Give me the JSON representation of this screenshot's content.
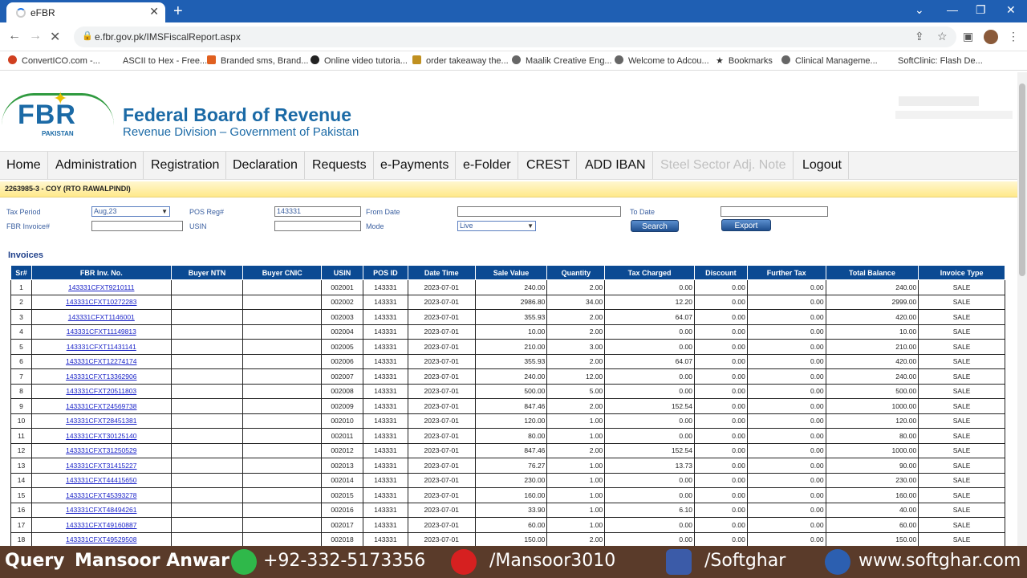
{
  "browser": {
    "tab_title": "eFBR",
    "tab_close": "✕",
    "new_tab": "+",
    "url": "e.fbr.gov.pk/IMSFiscalReport.aspx",
    "bookmarks": [
      {
        "label": "ConvertICO.com -...",
        "color": "#d04020"
      },
      {
        "label": "ASCII to Hex - Free...",
        "color": "#ffffff"
      },
      {
        "label": "Branded sms, Brand...",
        "color": "#e06020"
      },
      {
        "label": "Online video tutoria...",
        "color": "#222222"
      },
      {
        "label": "order takeaway the...",
        "color": "#c09020"
      },
      {
        "label": "Maalik Creative Eng...",
        "color": "#666666"
      },
      {
        "label": "Welcome to Adcou...",
        "color": "#666666"
      },
      {
        "label": "Bookmarks",
        "color": "#444444"
      },
      {
        "label": "Clinical Manageme...",
        "color": "#666666"
      },
      {
        "label": "SoftClinic: Flash De...",
        "color": "#ffffff"
      }
    ]
  },
  "header": {
    "logo_text": "FBR",
    "logo_sub": "PAKISTAN",
    "org_name": "Federal Board of Revenue",
    "org_sub": "Revenue Division – Government of Pakistan"
  },
  "menu": [
    "Home",
    "Administration",
    "Registration",
    "Declaration",
    "Requests",
    "e-Payments",
    "e-Folder",
    "CREST",
    "ADD IBAN",
    "Steel Sector Adj. Note",
    "Logout"
  ],
  "info": {
    "text": "2263985-3 - COY (RTO RAWALPINDI)"
  },
  "form": {
    "tax_period_label": "Tax Period",
    "tax_period_value": "Aug,23",
    "pos_reg_label": "POS Reg#",
    "pos_reg_value": "143331",
    "from_date_label": "From Date",
    "from_date_value": "",
    "to_date_label": "To Date",
    "to_date_value": "",
    "fbr_invoice_label": "FBR Invoice#",
    "fbr_invoice_value": "",
    "usin_label": "USIN",
    "usin_value": "",
    "mode_label": "Mode",
    "mode_value": "Live",
    "search_label": "Search",
    "export_label": "Export"
  },
  "invoices": {
    "title": "Invoices",
    "columns": [
      "Sr#",
      "FBR Inv. No.",
      "Buyer NTN",
      "Buyer CNIC",
      "USIN",
      "POS ID",
      "Date Time",
      "Sale Value",
      "Quantity",
      "Tax Charged",
      "Discount",
      "Further Tax",
      "Total Balance",
      "Invoice Type"
    ],
    "rows": [
      [
        "1",
        "143331CFXT9210111",
        "",
        "",
        "002001",
        "143331",
        "2023-07-01",
        "240.00",
        "2.00",
        "0.00",
        "0.00",
        "0.00",
        "240.00",
        "SALE"
      ],
      [
        "2",
        "143331CFXT10272283",
        "",
        "",
        "002002",
        "143331",
        "2023-07-01",
        "2986.80",
        "34.00",
        "12.20",
        "0.00",
        "0.00",
        "2999.00",
        "SALE"
      ],
      [
        "3",
        "143331CFXT1146001",
        "",
        "",
        "002003",
        "143331",
        "2023-07-01",
        "355.93",
        "2.00",
        "64.07",
        "0.00",
        "0.00",
        "420.00",
        "SALE"
      ],
      [
        "4",
        "143331CFXT11149813",
        "",
        "",
        "002004",
        "143331",
        "2023-07-01",
        "10.00",
        "2.00",
        "0.00",
        "0.00",
        "0.00",
        "10.00",
        "SALE"
      ],
      [
        "5",
        "143331CFXT11431141",
        "",
        "",
        "002005",
        "143331",
        "2023-07-01",
        "210.00",
        "3.00",
        "0.00",
        "0.00",
        "0.00",
        "210.00",
        "SALE"
      ],
      [
        "6",
        "143331CFXT12274174",
        "",
        "",
        "002006",
        "143331",
        "2023-07-01",
        "355.93",
        "2.00",
        "64.07",
        "0.00",
        "0.00",
        "420.00",
        "SALE"
      ],
      [
        "7",
        "143331CFXT13362906",
        "",
        "",
        "002007",
        "143331",
        "2023-07-01",
        "240.00",
        "12.00",
        "0.00",
        "0.00",
        "0.00",
        "240.00",
        "SALE"
      ],
      [
        "8",
        "143331CFXT20511803",
        "",
        "",
        "002008",
        "143331",
        "2023-07-01",
        "500.00",
        "5.00",
        "0.00",
        "0.00",
        "0.00",
        "500.00",
        "SALE"
      ],
      [
        "9",
        "143331CFXT24569738",
        "",
        "",
        "002009",
        "143331",
        "2023-07-01",
        "847.46",
        "2.00",
        "152.54",
        "0.00",
        "0.00",
        "1000.00",
        "SALE"
      ],
      [
        "10",
        "143331CFXT28451381",
        "",
        "",
        "002010",
        "143331",
        "2023-07-01",
        "120.00",
        "1.00",
        "0.00",
        "0.00",
        "0.00",
        "120.00",
        "SALE"
      ],
      [
        "11",
        "143331CFXT30125140",
        "",
        "",
        "002011",
        "143331",
        "2023-07-01",
        "80.00",
        "1.00",
        "0.00",
        "0.00",
        "0.00",
        "80.00",
        "SALE"
      ],
      [
        "12",
        "143331CFXT31250529",
        "",
        "",
        "002012",
        "143331",
        "2023-07-01",
        "847.46",
        "2.00",
        "152.54",
        "0.00",
        "0.00",
        "1000.00",
        "SALE"
      ],
      [
        "13",
        "143331CFXT31415227",
        "",
        "",
        "002013",
        "143331",
        "2023-07-01",
        "76.27",
        "1.00",
        "13.73",
        "0.00",
        "0.00",
        "90.00",
        "SALE"
      ],
      [
        "14",
        "143331CFXT44415650",
        "",
        "",
        "002014",
        "143331",
        "2023-07-01",
        "230.00",
        "1.00",
        "0.00",
        "0.00",
        "0.00",
        "230.00",
        "SALE"
      ],
      [
        "15",
        "143331CFXT45393278",
        "",
        "",
        "002015",
        "143331",
        "2023-07-01",
        "160.00",
        "1.00",
        "0.00",
        "0.00",
        "0.00",
        "160.00",
        "SALE"
      ],
      [
        "16",
        "143331CFXT48494261",
        "",
        "",
        "002016",
        "143331",
        "2023-07-01",
        "33.90",
        "1.00",
        "6.10",
        "0.00",
        "0.00",
        "40.00",
        "SALE"
      ],
      [
        "17",
        "143331CFXT49160887",
        "",
        "",
        "002017",
        "143331",
        "2023-07-01",
        "60.00",
        "1.00",
        "0.00",
        "0.00",
        "0.00",
        "60.00",
        "SALE"
      ],
      [
        "18",
        "143331CFXT49529508",
        "",
        "",
        "002018",
        "143331",
        "2023-07-01",
        "150.00",
        "2.00",
        "0.00",
        "0.00",
        "0.00",
        "150.00",
        "SALE"
      ]
    ]
  },
  "footer": {
    "query": "Query",
    "name": "Mansoor Anwar",
    "phone": "+92-332-5173356",
    "youtube": "/Mansoor3010",
    "facebook": "/Softghar",
    "website": "www.softghar.com"
  },
  "colors": {
    "accent": "#0b4a93",
    "brand": "#1b6aa6",
    "footer": "#5a3b2a"
  }
}
